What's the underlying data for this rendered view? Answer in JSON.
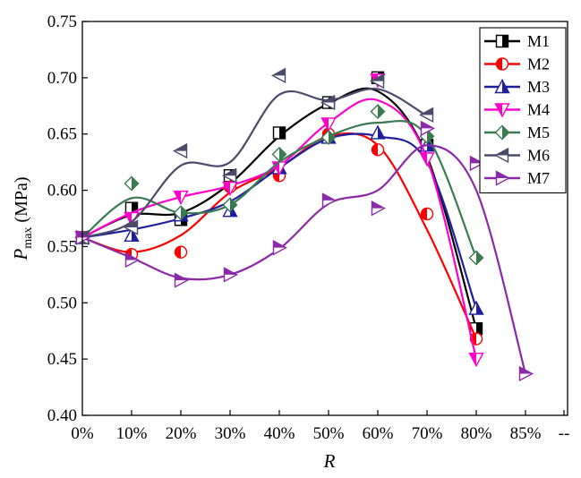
{
  "chart_data": {
    "type": "line",
    "title": "",
    "xlabel": "R",
    "ylabel": "P",
    "ylabel_sub": "max",
    "ylabel_unit": "(MPa)",
    "x_tick_labels": [
      "0%",
      "10%",
      "20%",
      "30%",
      "40%",
      "50%",
      "60%",
      "70%",
      "80%",
      "85%",
      "--"
    ],
    "y_tick_labels": [
      "0.40",
      "0.45",
      "0.50",
      "0.55",
      "0.60",
      "0.65",
      "0.70",
      "0.75"
    ],
    "ylim": [
      0.4,
      0.75
    ],
    "grid": false,
    "legend_position": "top-right",
    "series": [
      {
        "name": "M1",
        "color": "#000000",
        "marker": "square-half",
        "x": [
          0,
          10,
          20,
          30,
          40,
          50,
          60,
          70,
          80
        ],
        "y": [
          0.558,
          0.584,
          0.574,
          0.613,
          0.651,
          0.678,
          0.7,
          0.64,
          0.477
        ],
        "curve": [
          0.558,
          0.578,
          0.58,
          0.606,
          0.648,
          0.677,
          0.688,
          0.63,
          0.477
        ]
      },
      {
        "name": "M2",
        "color": "#ff0000",
        "marker": "circle-half",
        "x": [
          0,
          10,
          20,
          30,
          40,
          50,
          60,
          70,
          80
        ],
        "y": [
          0.558,
          0.543,
          0.545,
          0.603,
          0.613,
          0.65,
          0.636,
          0.579,
          0.468
        ],
        "curve": [
          0.558,
          0.545,
          0.56,
          0.598,
          0.62,
          0.648,
          0.64,
          0.565,
          0.468
        ]
      },
      {
        "name": "M3",
        "color": "#1f1f9e",
        "marker": "triangle-up-half",
        "x": [
          0,
          10,
          20,
          30,
          40,
          50,
          60,
          70,
          80
        ],
        "y": [
          0.558,
          0.56,
          0.578,
          0.582,
          0.62,
          0.647,
          0.651,
          0.64,
          0.495
        ],
        "curve": [
          0.558,
          0.565,
          0.575,
          0.59,
          0.62,
          0.646,
          0.648,
          0.625,
          0.495
        ]
      },
      {
        "name": "M4",
        "color": "#ff00cc",
        "marker": "triangle-down-half",
        "x": [
          0,
          10,
          20,
          30,
          40,
          50,
          60,
          70,
          80
        ],
        "y": [
          0.558,
          0.575,
          0.594,
          0.602,
          0.62,
          0.659,
          0.698,
          0.628,
          0.45
        ],
        "curve": [
          0.558,
          0.58,
          0.594,
          0.604,
          0.622,
          0.66,
          0.68,
          0.628,
          0.45
        ]
      },
      {
        "name": "M5",
        "color": "#3a7a50",
        "marker": "diamond-half",
        "x": [
          0,
          10,
          20,
          30,
          40,
          50,
          60,
          70,
          80
        ],
        "y": [
          0.558,
          0.606,
          0.58,
          0.587,
          0.632,
          0.647,
          0.67,
          0.648,
          0.54
        ],
        "curve": [
          0.558,
          0.593,
          0.58,
          0.587,
          0.625,
          0.648,
          0.66,
          0.648,
          0.54
        ]
      },
      {
        "name": "M6",
        "color": "#4a4a6a",
        "marker": "triangle-left-half",
        "x": [
          0,
          10,
          20,
          30,
          40,
          50
        ],
        "y": [
          0.558,
          0.567,
          0.635,
          0.613,
          0.702,
          0.678
        ],
        "curve": [
          0.558,
          0.572,
          0.622,
          0.625,
          0.685,
          0.68,
          0.69,
          0.666
        ],
        "curve_x": [
          0,
          10,
          20,
          30,
          40,
          50,
          60,
          70
        ],
        "extra_markers_x": [
          60,
          70
        ],
        "extra_markers_y": [
          0.697,
          0.667
        ]
      },
      {
        "name": "M7",
        "color": "#8a2aa8",
        "marker": "triangle-right-half",
        "x": [
          0,
          10,
          20,
          30,
          40,
          50,
          60,
          70,
          80,
          85
        ],
        "y": [
          0.558,
          0.538,
          0.52,
          0.525,
          0.549,
          0.591,
          0.584,
          0.655,
          0.624,
          0.437
        ],
        "curve": [
          0.558,
          0.54,
          0.522,
          0.525,
          0.548,
          0.588,
          0.6,
          0.64,
          0.6,
          0.437
        ]
      }
    ]
  }
}
